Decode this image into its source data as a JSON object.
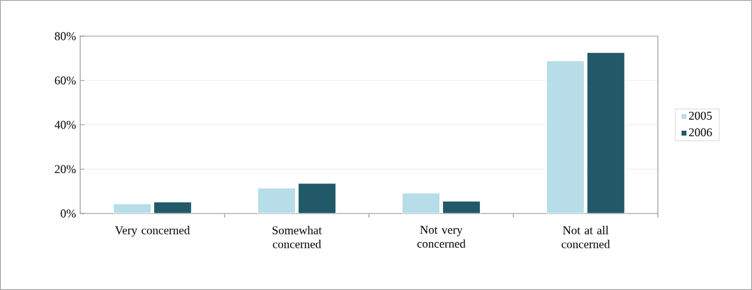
{
  "chart_data": {
    "type": "bar",
    "categories": [
      "Very concerned",
      "Somewhat concerned",
      "Not very concerned",
      "Not at all concerned"
    ],
    "series": [
      {
        "name": "2005",
        "color": "#b7dde8",
        "values": [
          4.4,
          11.5,
          9.2,
          68.9
        ]
      },
      {
        "name": "2006",
        "color": "#215968",
        "values": [
          5.2,
          13.6,
          5.6,
          72.6
        ]
      }
    ],
    "ylim": [
      0,
      80
    ],
    "yticks": [
      {
        "value": 0,
        "label": "0%"
      },
      {
        "value": 20,
        "label": "20%"
      },
      {
        "value": 40,
        "label": "40%"
      },
      {
        "value": 60,
        "label": "60%"
      },
      {
        "value": 80,
        "label": "80%"
      }
    ],
    "grid": "y",
    "legend": "right"
  }
}
